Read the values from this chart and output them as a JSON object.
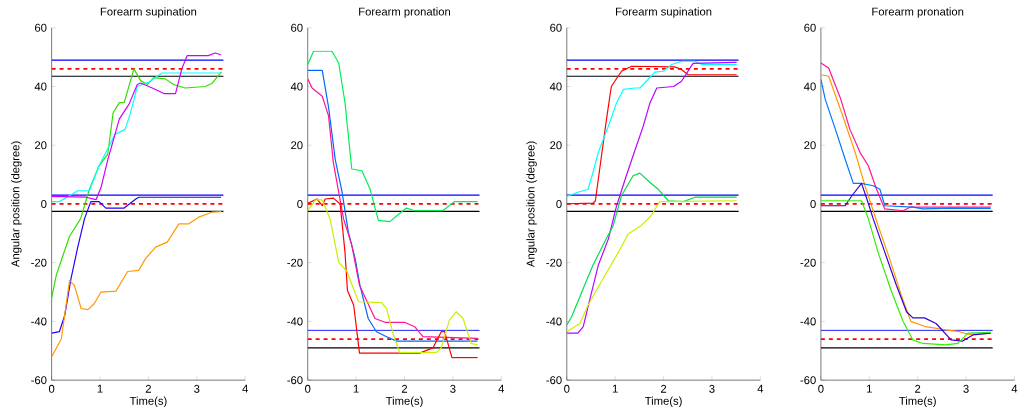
{
  "chart_data": [
    {
      "type": "line",
      "title": "Forearm supination",
      "xlabel": "Time(s)",
      "ylabel": "Angular position (degree)",
      "xlim": [
        0,
        4
      ],
      "ylim": [
        -60,
        60
      ],
      "xticks": [
        0,
        1,
        2,
        3,
        4
      ],
      "yticks": [
        -60,
        -40,
        -20,
        0,
        20,
        40,
        60
      ],
      "series": [
        {
          "color": "#0000ff",
          "x": [
            0,
            3.55
          ],
          "values": [
            49,
            49
          ]
        },
        {
          "color": "#ff0000",
          "line_style": "dashed",
          "x": [
            0,
            3.55
          ],
          "values": [
            46,
            46
          ]
        },
        {
          "color": "#000000",
          "x": [
            0,
            3.55
          ],
          "values": [
            43.5,
            43.5
          ]
        },
        {
          "color": "#0000ff",
          "x": [
            0,
            3.55
          ],
          "values": [
            3,
            3
          ]
        },
        {
          "color": "#ff0000",
          "line_style": "dashed",
          "x": [
            0,
            3.55
          ],
          "values": [
            0,
            0
          ]
        },
        {
          "color": "#000000",
          "x": [
            0,
            3.55
          ],
          "values": [
            -2.5,
            -2.5
          ]
        },
        {
          "color": "#33dd00",
          "x": [
            0,
            0.1,
            0.37,
            0.6,
            0.78,
            0.98,
            1.16,
            1.27,
            1.4,
            1.5,
            1.7,
            1.84,
            1.98,
            2.11,
            2.35,
            2.52,
            2.76,
            3.17,
            3.31,
            3.51
          ],
          "values": [
            -32,
            -24,
            -11,
            -5,
            5,
            13,
            17,
            31,
            34.5,
            34.5,
            46,
            42,
            40.7,
            43,
            42.6,
            40.7,
            39.5,
            40,
            41,
            45
          ]
        },
        {
          "color": "#2200ff",
          "x": [
            0,
            0.16,
            0.27,
            0.4,
            0.54,
            0.68,
            0.81,
            0.98,
            1.12,
            1.5,
            1.74,
            1.8,
            3.5
          ],
          "values": [
            -44,
            -43.5,
            -38,
            -25.4,
            -14.7,
            -5,
            0.8,
            0.8,
            -1.4,
            -1.4,
            1.7,
            2.3,
            2.3
          ]
        },
        {
          "color": "#00ffff",
          "x": [
            0,
            0.16,
            0.54,
            0.78,
            0.98,
            1.12,
            1.31,
            1.52,
            1.63,
            1.77,
            2.01,
            2.28,
            3.5
          ],
          "values": [
            0.8,
            0.8,
            4.5,
            4.5,
            13,
            17.5,
            23.7,
            25.4,
            31,
            40,
            41.5,
            44.6,
            44.6
          ]
        },
        {
          "color": "#cc00ff",
          "x": [
            0,
            0.71,
            0.92,
            1.02,
            1.16,
            1.4,
            1.6,
            1.77,
            1.84,
            2.08,
            2.32,
            2.56,
            2.69,
            2.8,
            3.24,
            3.38,
            3.5
          ],
          "values": [
            2.6,
            2.3,
            1.5,
            5.6,
            15,
            29,
            34,
            40.7,
            41.2,
            39.5,
            37.6,
            37.6,
            46,
            50.5,
            50.5,
            51.4,
            50.8
          ]
        },
        {
          "color": "#ff9900",
          "x": [
            0,
            0.2,
            0.37,
            0.47,
            0.61,
            0.75,
            0.88,
            1.02,
            1.33,
            1.57,
            1.8,
            1.94,
            2.15,
            2.39,
            2.63,
            2.83,
            3.04,
            3.31,
            3.51
          ],
          "values": [
            -52,
            -46,
            -26,
            -27.7,
            -35.6,
            -36,
            -34,
            -30,
            -29.7,
            -23,
            -22.6,
            -18.6,
            -14.7,
            -13,
            -6.8,
            -6.8,
            -4.5,
            -2.8,
            -2.6
          ]
        }
      ]
    },
    {
      "type": "line",
      "title": "Forearm pronation",
      "xlabel": "Time(s)",
      "xlim": [
        0,
        4
      ],
      "ylim": [
        -60,
        60
      ],
      "xticks": [
        0,
        1,
        2,
        3,
        4
      ],
      "yticks": [
        -60,
        -40,
        -20,
        0,
        20,
        40,
        60
      ],
      "series": [
        {
          "color": "#0000ff",
          "x": [
            0,
            3.55
          ],
          "values": [
            3,
            3
          ]
        },
        {
          "color": "#ff0000",
          "line_style": "dashed",
          "x": [
            0,
            3.55
          ],
          "values": [
            0,
            0
          ]
        },
        {
          "color": "#000000",
          "x": [
            0,
            3.55
          ],
          "values": [
            -2.5,
            -2.5
          ]
        },
        {
          "color": "#0000ff",
          "x": [
            0,
            3.55
          ],
          "values": [
            -43,
            -43
          ]
        },
        {
          "color": "#ff0000",
          "line_style": "dashed",
          "x": [
            0,
            3.55
          ],
          "values": [
            -46,
            -46
          ]
        },
        {
          "color": "#000000",
          "x": [
            0,
            3.55
          ],
          "values": [
            -49,
            -49
          ]
        },
        {
          "color": "#00ee55",
          "x": [
            0,
            0.12,
            0.5,
            0.64,
            0.77,
            0.91,
            1.12,
            1.29,
            1.46,
            1.7,
            1.84,
            2.04,
            2.21,
            2.79,
            3.03,
            3.51
          ],
          "values": [
            47.5,
            52,
            52,
            48,
            34.5,
            11.9,
            11.3,
            5,
            -5.6,
            -6,
            -4,
            -1.4,
            -2.3,
            -2.3,
            0.8,
            0.8
          ]
        },
        {
          "color": "#0066ff",
          "x": [
            0,
            0.3,
            0.43,
            0.57,
            0.71,
            0.84,
            0.98,
            1.08,
            1.25,
            1.42,
            1.63,
            1.84,
            3.51
          ],
          "values": [
            45.5,
            45.5,
            33,
            15,
            4,
            -9.6,
            -18.6,
            -27.7,
            -39,
            -43.5,
            -45.2,
            -46.7,
            -46.7
          ]
        },
        {
          "color": "#ff1493",
          "x": [
            0,
            0.09,
            0.3,
            0.43,
            0.53,
            0.74,
            0.91,
            1.07,
            1.39,
            1.6,
            2.0,
            2.21,
            2.38,
            3.51
          ],
          "values": [
            42.6,
            39.5,
            36.7,
            30,
            14,
            -5,
            -14,
            -27.7,
            -39,
            -40.3,
            -40.3,
            -41.8,
            -45.2,
            -45.8
          ]
        },
        {
          "color": "#ff0000",
          "x": [
            0,
            0.19,
            0.3,
            0.36,
            0.53,
            0.67,
            0.77,
            0.82,
            0.95,
            1.07,
            2.31,
            2.59,
            2.76,
            2.83,
            2.98,
            3.51
          ],
          "values": [
            0.2,
            1.7,
            -0.6,
            1.7,
            2,
            0,
            -16.4,
            -29.4,
            -34.5,
            -50.8,
            -50.8,
            -49,
            -43.5,
            -43.5,
            -52.3,
            -52.3
          ]
        },
        {
          "color": "#ccee00",
          "x": [
            0,
            0.16,
            0.3,
            0.46,
            0.64,
            0.81,
            1.05,
            1.53,
            1.63,
            1.77,
            1.9,
            2.66,
            2.76,
            2.93,
            3.07,
            3.21,
            3.38,
            3.51
          ],
          "values": [
            -2.3,
            1.4,
            1.4,
            -5,
            -19.8,
            -23,
            -33.3,
            -33.6,
            -35.6,
            -44.6,
            -50.6,
            -50.6,
            -49,
            -39.5,
            -36.7,
            -39,
            -47.5,
            -48
          ]
        }
      ]
    },
    {
      "type": "line",
      "title": "Forearm supination",
      "xlabel": "Time(s)",
      "ylabel": "Angular position (degree)",
      "xlim": [
        0,
        4
      ],
      "ylim": [
        -60,
        60
      ],
      "xticks": [
        0,
        1,
        2,
        3,
        4
      ],
      "yticks": [
        -60,
        -40,
        -20,
        0,
        20,
        40,
        60
      ],
      "series": [
        {
          "color": "#0000ff",
          "x": [
            0,
            3.55
          ],
          "values": [
            49,
            49
          ]
        },
        {
          "color": "#ff0000",
          "line_style": "dashed",
          "x": [
            0,
            3.55
          ],
          "values": [
            46,
            46
          ]
        },
        {
          "color": "#000000",
          "x": [
            0,
            3.55
          ],
          "values": [
            43.5,
            43.5
          ]
        },
        {
          "color": "#0000ff",
          "x": [
            0,
            3.55
          ],
          "values": [
            3,
            3
          ]
        },
        {
          "color": "#ff0000",
          "line_style": "dashed",
          "x": [
            0,
            3.55
          ],
          "values": [
            0,
            0
          ]
        },
        {
          "color": "#000000",
          "x": [
            0,
            3.55
          ],
          "values": [
            -2.5,
            -2.5
          ]
        },
        {
          "color": "#ff0000",
          "x": [
            0,
            0.54,
            0.59,
            0.68,
            0.82,
            0.92,
            1.13,
            1.34,
            2.23,
            2.37,
            2.51,
            3.51
          ],
          "values": [
            0,
            0.3,
            1,
            11.9,
            28.8,
            40,
            45.2,
            46.9,
            46.7,
            45.8,
            44,
            44
          ]
        },
        {
          "color": "#00ffff",
          "x": [
            0,
            0.23,
            0.44,
            0.54,
            0.65,
            0.86,
            1.03,
            1.17,
            1.41,
            1.51,
            1.61,
            1.82,
            1.99,
            2.17,
            2.37,
            2.65,
            2.79,
            3.51
          ],
          "values": [
            2.6,
            4,
            5,
            10.7,
            17.5,
            26.5,
            34.5,
            39,
            39.5,
            39.5,
            41.2,
            44.9,
            45.2,
            47.5,
            48.6,
            48.6,
            47.5,
            47.5
          ]
        },
        {
          "color": "#bb00ff",
          "x": [
            0,
            0.23,
            0.34,
            0.48,
            0.65,
            0.86,
            1.03,
            1.23,
            1.37,
            1.58,
            1.72,
            1.86,
            2.21,
            2.37,
            2.61,
            3.51
          ],
          "values": [
            -44,
            -44,
            -41.8,
            -32.2,
            -20.9,
            -11.9,
            -0.6,
            9.6,
            16.4,
            26.5,
            34.5,
            39.5,
            40,
            41.8,
            47.9,
            48.2
          ]
        },
        {
          "color": "#00dd55",
          "x": [
            0,
            0.1,
            0.34,
            0.54,
            0.75,
            0.96,
            1.13,
            1.37,
            1.51,
            1.72,
            1.89,
            2.1,
            2.41,
            2.65,
            3.51
          ],
          "values": [
            -41.2,
            -38.4,
            -28.8,
            -20.9,
            -14,
            -7.3,
            2.8,
            9.6,
            10.5,
            7.3,
            5,
            1.1,
            0.8,
            2.3,
            2.3
          ]
        },
        {
          "color": "#ccee00",
          "x": [
            0,
            0.27,
            0.44,
            0.75,
            1.03,
            1.27,
            1.54,
            1.74,
            1.92,
            3.51
          ],
          "values": [
            -43.5,
            -40.7,
            -34.5,
            -25.4,
            -17.5,
            -10.2,
            -7.3,
            -4,
            0.8,
            1.1
          ]
        }
      ]
    },
    {
      "type": "line",
      "title": "Forearm pronation",
      "xlabel": "Time(s)",
      "xlim": [
        0,
        4
      ],
      "ylim": [
        -60,
        60
      ],
      "xticks": [
        0,
        1,
        2,
        3,
        4
      ],
      "yticks": [
        -60,
        -40,
        -20,
        0,
        20,
        40,
        60
      ],
      "series": [
        {
          "color": "#0000ff",
          "x": [
            0,
            3.55
          ],
          "values": [
            3,
            3
          ]
        },
        {
          "color": "#ff0000",
          "line_style": "dashed",
          "x": [
            0,
            3.55
          ],
          "values": [
            0,
            0
          ]
        },
        {
          "color": "#000000",
          "x": [
            0,
            3.55
          ],
          "values": [
            -2.5,
            -2.5
          ]
        },
        {
          "color": "#0000ff",
          "x": [
            0,
            3.55
          ],
          "values": [
            -43,
            -43
          ]
        },
        {
          "color": "#ff0000",
          "line_style": "dashed",
          "x": [
            0,
            3.55
          ],
          "values": [
            -46,
            -46
          ]
        },
        {
          "color": "#000000",
          "x": [
            0,
            3.55
          ],
          "values": [
            -49,
            -49
          ]
        },
        {
          "color": "#ff1493",
          "x": [
            0,
            0.16,
            0.4,
            0.6,
            0.81,
            0.98,
            1.15,
            1.32,
            1.7,
            1.84,
            3.51
          ],
          "values": [
            48,
            46.3,
            36.2,
            25.4,
            17.5,
            13,
            5,
            -1.7,
            -2.3,
            -1.1,
            -1.1
          ]
        },
        {
          "color": "#ff9900",
          "x": [
            0,
            0.16,
            0.43,
            0.71,
            0.91,
            1.18,
            1.42,
            1.66,
            1.86,
            2.17,
            2.58,
            2.86,
            3.07,
            3.51
          ],
          "values": [
            44,
            43.5,
            31,
            17.5,
            6.2,
            -7.3,
            -18.6,
            -31,
            -40,
            -41.8,
            -42.9,
            -43.5,
            -44.4,
            -44
          ]
        },
        {
          "color": "#0077ff",
          "x": [
            0,
            0.09,
            0.3,
            0.5,
            0.67,
            0.84,
            1.08,
            1.22,
            1.32,
            1.9,
            2.11,
            2.73,
            3.51
          ],
          "values": [
            42.4,
            35.6,
            25.4,
            15.3,
            7,
            7,
            6.2,
            5,
            -0.6,
            -1.1,
            -1.7,
            -1.4,
            -1.5
          ]
        },
        {
          "color": "#3300dd",
          "x": [
            0,
            0.5,
            0.64,
            0.84,
            0.95,
            1.08,
            1.32,
            1.56,
            1.77,
            1.9,
            2.14,
            2.38,
            2.69,
            2.93,
            3.14,
            3.51
          ],
          "values": [
            -0.6,
            -0.6,
            2.8,
            7,
            1.7,
            -5,
            -16.4,
            -27.7,
            -36.7,
            -38.8,
            -38.8,
            -40.7,
            -46.3,
            -46.7,
            -44.6,
            -44
          ]
        },
        {
          "color": "#33ee00",
          "x": [
            0,
            0.84,
            0.98,
            1.18,
            1.46,
            1.7,
            1.9,
            2.11,
            2.58,
            2.83,
            3.04,
            3.51
          ],
          "values": [
            1.1,
            1.1,
            -5,
            -16.4,
            -29.9,
            -40,
            -46.3,
            -47.5,
            -48,
            -47.5,
            -44,
            -43.7
          ]
        }
      ]
    }
  ]
}
